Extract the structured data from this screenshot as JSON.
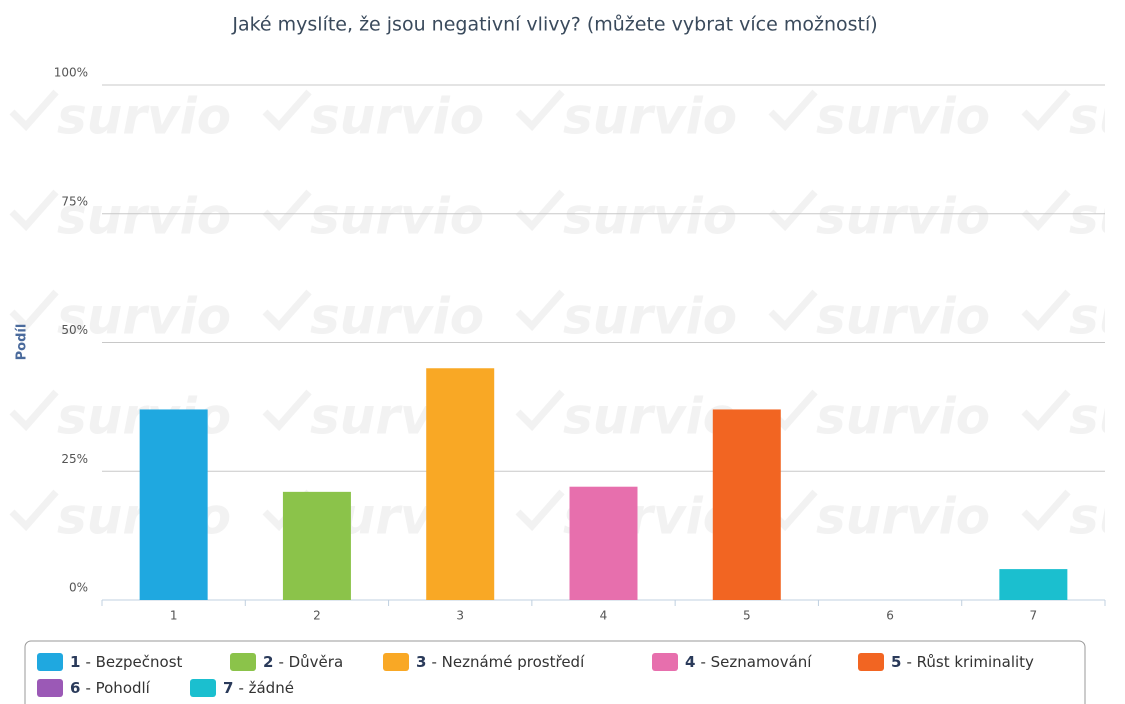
{
  "chart_data": {
    "type": "bar",
    "title": "Jaké myslíte, že jsou negativní vlivy? (můžete vybrat více možností)",
    "y_label": "Podíl",
    "watermark": "survio",
    "categories": [
      "1",
      "2",
      "3",
      "4",
      "5",
      "6",
      "7"
    ],
    "values": [
      37,
      21,
      45,
      22,
      37,
      0,
      6
    ],
    "colors": [
      "#1fa8e0",
      "#8bc34a",
      "#f9a825",
      "#e76fad",
      "#f26522",
      "#9b59b6",
      "#1bbfcf"
    ],
    "legend_labels": [
      "- Bezpečnost",
      "- Důvěra",
      "- Neznámé prostředí",
      "- Seznamování",
      "- Růst kriminality",
      "- Pohodlí",
      "- žádné"
    ],
    "ylim": [
      0,
      100
    ],
    "yticks": [
      {
        "value": 0,
        "label": "0%"
      },
      {
        "value": 25,
        "label": "25%"
      },
      {
        "value": 50,
        "label": "50%"
      },
      {
        "value": 75,
        "label": "75%"
      },
      {
        "value": 100,
        "label": "100%"
      }
    ],
    "grid": true
  }
}
